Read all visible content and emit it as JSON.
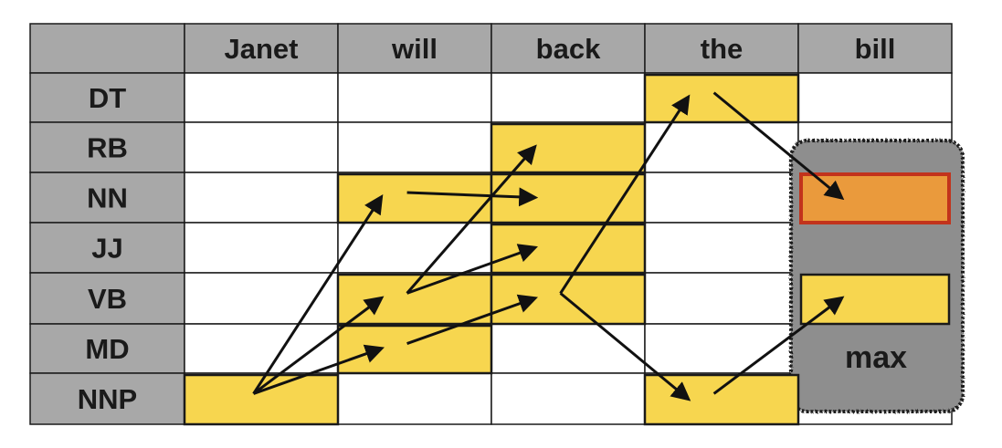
{
  "grid": {
    "corner": "",
    "words": [
      "Janet",
      "will",
      "back",
      "the",
      "bill"
    ],
    "tags": [
      "DT",
      "RB",
      "NN",
      "JJ",
      "VB",
      "MD",
      "NNP"
    ]
  },
  "states": [
    {
      "tag": "NNP",
      "word": "Janet"
    },
    {
      "tag": "NN",
      "word": "will"
    },
    {
      "tag": "VB",
      "word": "will"
    },
    {
      "tag": "MD",
      "word": "will"
    },
    {
      "tag": "RB",
      "word": "back"
    },
    {
      "tag": "NN",
      "word": "back"
    },
    {
      "tag": "JJ",
      "word": "back"
    },
    {
      "tag": "VB",
      "word": "back"
    },
    {
      "tag": "DT",
      "word": "the"
    },
    {
      "tag": "NNP",
      "word": "the"
    },
    {
      "tag": "NN",
      "word": "bill",
      "highlight": "max"
    },
    {
      "tag": "VB",
      "word": "bill"
    }
  ],
  "transitions": [
    {
      "from": [
        "NNP",
        "Janet"
      ],
      "to": [
        "NN",
        "will"
      ]
    },
    {
      "from": [
        "NNP",
        "Janet"
      ],
      "to": [
        "VB",
        "will"
      ]
    },
    {
      "from": [
        "NNP",
        "Janet"
      ],
      "to": [
        "MD",
        "will"
      ]
    },
    {
      "from": [
        "NN",
        "will"
      ],
      "to": [
        "NN",
        "back"
      ]
    },
    {
      "from": [
        "VB",
        "will"
      ],
      "to": [
        "RB",
        "back"
      ]
    },
    {
      "from": [
        "VB",
        "will"
      ],
      "to": [
        "JJ",
        "back"
      ]
    },
    {
      "from": [
        "MD",
        "will"
      ],
      "to": [
        "VB",
        "back"
      ]
    },
    {
      "from": [
        "VB",
        "back"
      ],
      "to": [
        "DT",
        "the"
      ]
    },
    {
      "from": [
        "VB",
        "back"
      ],
      "to": [
        "NNP",
        "the"
      ]
    },
    {
      "from": [
        "DT",
        "the"
      ],
      "to": [
        "NN",
        "bill"
      ]
    },
    {
      "from": [
        "NNP",
        "the"
      ],
      "to": [
        "VB",
        "bill"
      ]
    }
  ],
  "max_box": {
    "label": "max"
  },
  "colors": {
    "header_gray": "#a8a8a8",
    "cell_white": "#ffffff",
    "state_yellow": "#f7d64f",
    "max_orange": "#ea9a3c",
    "max_orange_border": "#c2331c",
    "max_panel_gray": "#8e8e8e",
    "arrow": "#111111"
  }
}
